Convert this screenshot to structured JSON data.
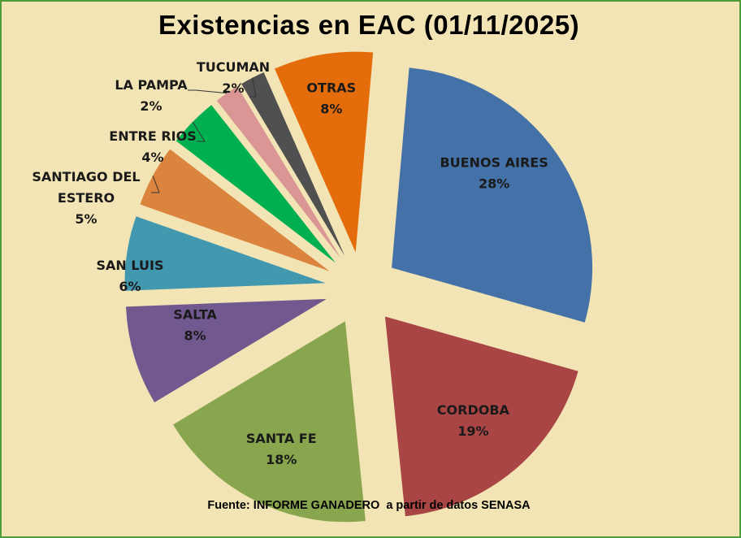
{
  "title": "Existencias en EAC (01/11/2025)",
  "source": "Fuente: INFORME GANADERO  a partir de datos SENASA",
  "chart_data": {
    "type": "pie",
    "title": "Existencias en EAC (01/11/2025)",
    "categories": [
      "BUENOS AIRES",
      "CORDOBA",
      "SANTA FE",
      "SALTA",
      "SAN LUIS",
      "SANTIAGO DEL ESTERO",
      "ENTRE RIOS",
      "LA PAMPA",
      "TUCUMAN",
      "OTRAS"
    ],
    "values": [
      28,
      19,
      18,
      8,
      6,
      5,
      4,
      2,
      2,
      8
    ],
    "labels": [
      {
        "lines": [
          "BUENOS AIRES",
          "28%"
        ]
      },
      {
        "lines": [
          "CORDOBA",
          "19%"
        ]
      },
      {
        "lines": [
          "SANTA FE",
          "18%"
        ]
      },
      {
        "lines": [
          "SALTA",
          "8%"
        ]
      },
      {
        "lines": [
          "SAN LUIS",
          "6%"
        ]
      },
      {
        "lines": [
          "SANTIAGO DEL",
          "ESTERO",
          "5%"
        ]
      },
      {
        "lines": [
          "ENTRE RIOS",
          "4%"
        ]
      },
      {
        "lines": [
          "LA PAMPA",
          "2%"
        ]
      },
      {
        "lines": [
          "TUCUMAN",
          "2%"
        ]
      },
      {
        "lines": [
          "OTRAS",
          "8%"
        ]
      }
    ],
    "colors": [
      "#4472A8",
      "#A94645",
      "#89A54E",
      "#71588F",
      "#4198AF",
      "#DB843D",
      "#00B050",
      "#D99694",
      "#505050",
      "#E46C0A"
    ],
    "label_placement": [
      "inside",
      "inside",
      "inside",
      "inside",
      "outside",
      "outside",
      "outside",
      "outside",
      "outside",
      "inside"
    ],
    "exploded": true
  }
}
